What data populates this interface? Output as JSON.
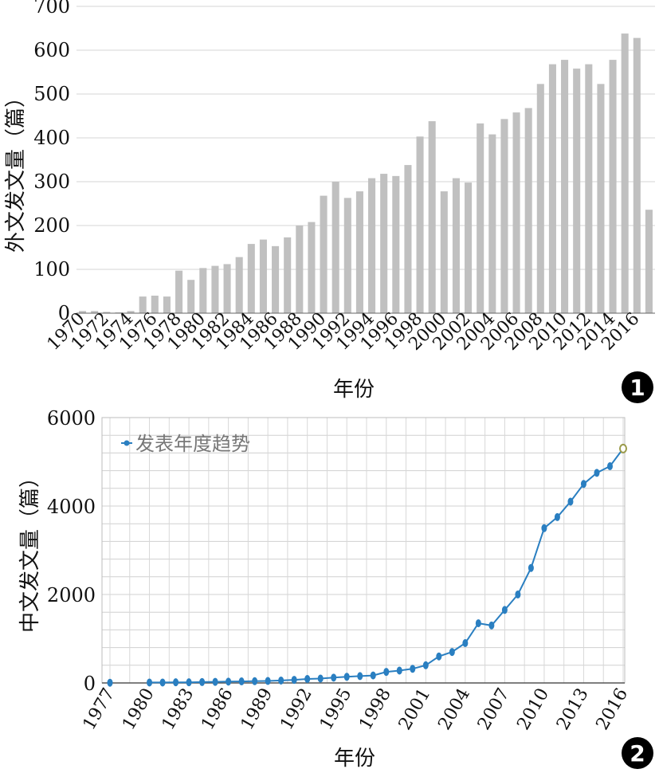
{
  "chart_data": [
    {
      "type": "bar",
      "ylabel": "外文发文量（篇）",
      "xlabel": "年份",
      "badge": "1",
      "ylim": [
        0,
        700
      ],
      "yticks": [
        0,
        100,
        200,
        300,
        400,
        500,
        600,
        700
      ],
      "grid": true,
      "bar_color": "#c0c0c0",
      "categories": [
        "1970",
        "1971",
        "1972",
        "1973",
        "1974",
        "1975",
        "1976",
        "1977",
        "1978",
        "1979",
        "1980",
        "1981",
        "1982",
        "1983",
        "1984",
        "1985",
        "1986",
        "1987",
        "1988",
        "1989",
        "1990",
        "1991",
        "1992",
        "1993",
        "1994",
        "1995",
        "1996",
        "1997",
        "1998",
        "1999",
        "2000",
        "2001",
        "2002",
        "2003",
        "2004",
        "2005",
        "2006",
        "2007",
        "2008",
        "2009",
        "2010",
        "2011",
        "2012",
        "2013",
        "2014",
        "2015",
        "2016",
        "2017"
      ],
      "tick_labels": [
        "1970",
        "1972",
        "1974",
        "1976",
        "1978",
        "1980",
        "1982",
        "1984",
        "1986",
        "1988",
        "1990",
        "1992",
        "1994",
        "1996",
        "1998",
        "2000",
        "2002",
        "2004",
        "2006",
        "2008",
        "2010",
        "2012",
        "2014",
        "2016"
      ],
      "values": [
        5,
        5,
        3,
        2,
        5,
        38,
        40,
        38,
        97,
        76,
        103,
        108,
        112,
        128,
        158,
        168,
        153,
        173,
        200,
        208,
        268,
        300,
        263,
        278,
        308,
        318,
        313,
        338,
        403,
        438,
        278,
        308,
        298,
        433,
        408,
        443,
        458,
        468,
        523,
        568,
        578,
        558,
        568,
        523,
        578,
        638,
        628,
        236
      ]
    },
    {
      "type": "line",
      "ylabel": "中文发文量（篇）",
      "xlabel": "年份",
      "badge": "2",
      "ylim": [
        0,
        6000
      ],
      "yticks": [
        0,
        2000,
        4000,
        6000
      ],
      "xlim": [
        1977,
        2016
      ],
      "xticks": [
        1977,
        1980,
        1983,
        1986,
        1989,
        1992,
        1995,
        1998,
        2001,
        2004,
        2007,
        2010,
        2013,
        2016
      ],
      "grid": true,
      "legend_position": "top-left",
      "series": [
        {
          "name": "发表年度趋势",
          "color": "#2a7fc1",
          "x": [
            1977,
            1980,
            1981,
            1982,
            1983,
            1984,
            1985,
            1986,
            1987,
            1988,
            1989,
            1990,
            1991,
            1992,
            1993,
            1994,
            1995,
            1996,
            1997,
            1998,
            1999,
            2000,
            2001,
            2002,
            2003,
            2004,
            2005,
            2006,
            2007,
            2008,
            2009,
            2010,
            2011,
            2012,
            2013,
            2014,
            2015,
            2016
          ],
          "values": [
            5,
            10,
            10,
            15,
            15,
            20,
            25,
            30,
            35,
            40,
            45,
            55,
            70,
            90,
            100,
            120,
            140,
            155,
            170,
            250,
            280,
            320,
            400,
            600,
            700,
            900,
            1350,
            1300,
            1650,
            2000,
            2600,
            3500,
            3750,
            4100,
            4500,
            4750,
            4900,
            5300
          ]
        }
      ]
    }
  ]
}
